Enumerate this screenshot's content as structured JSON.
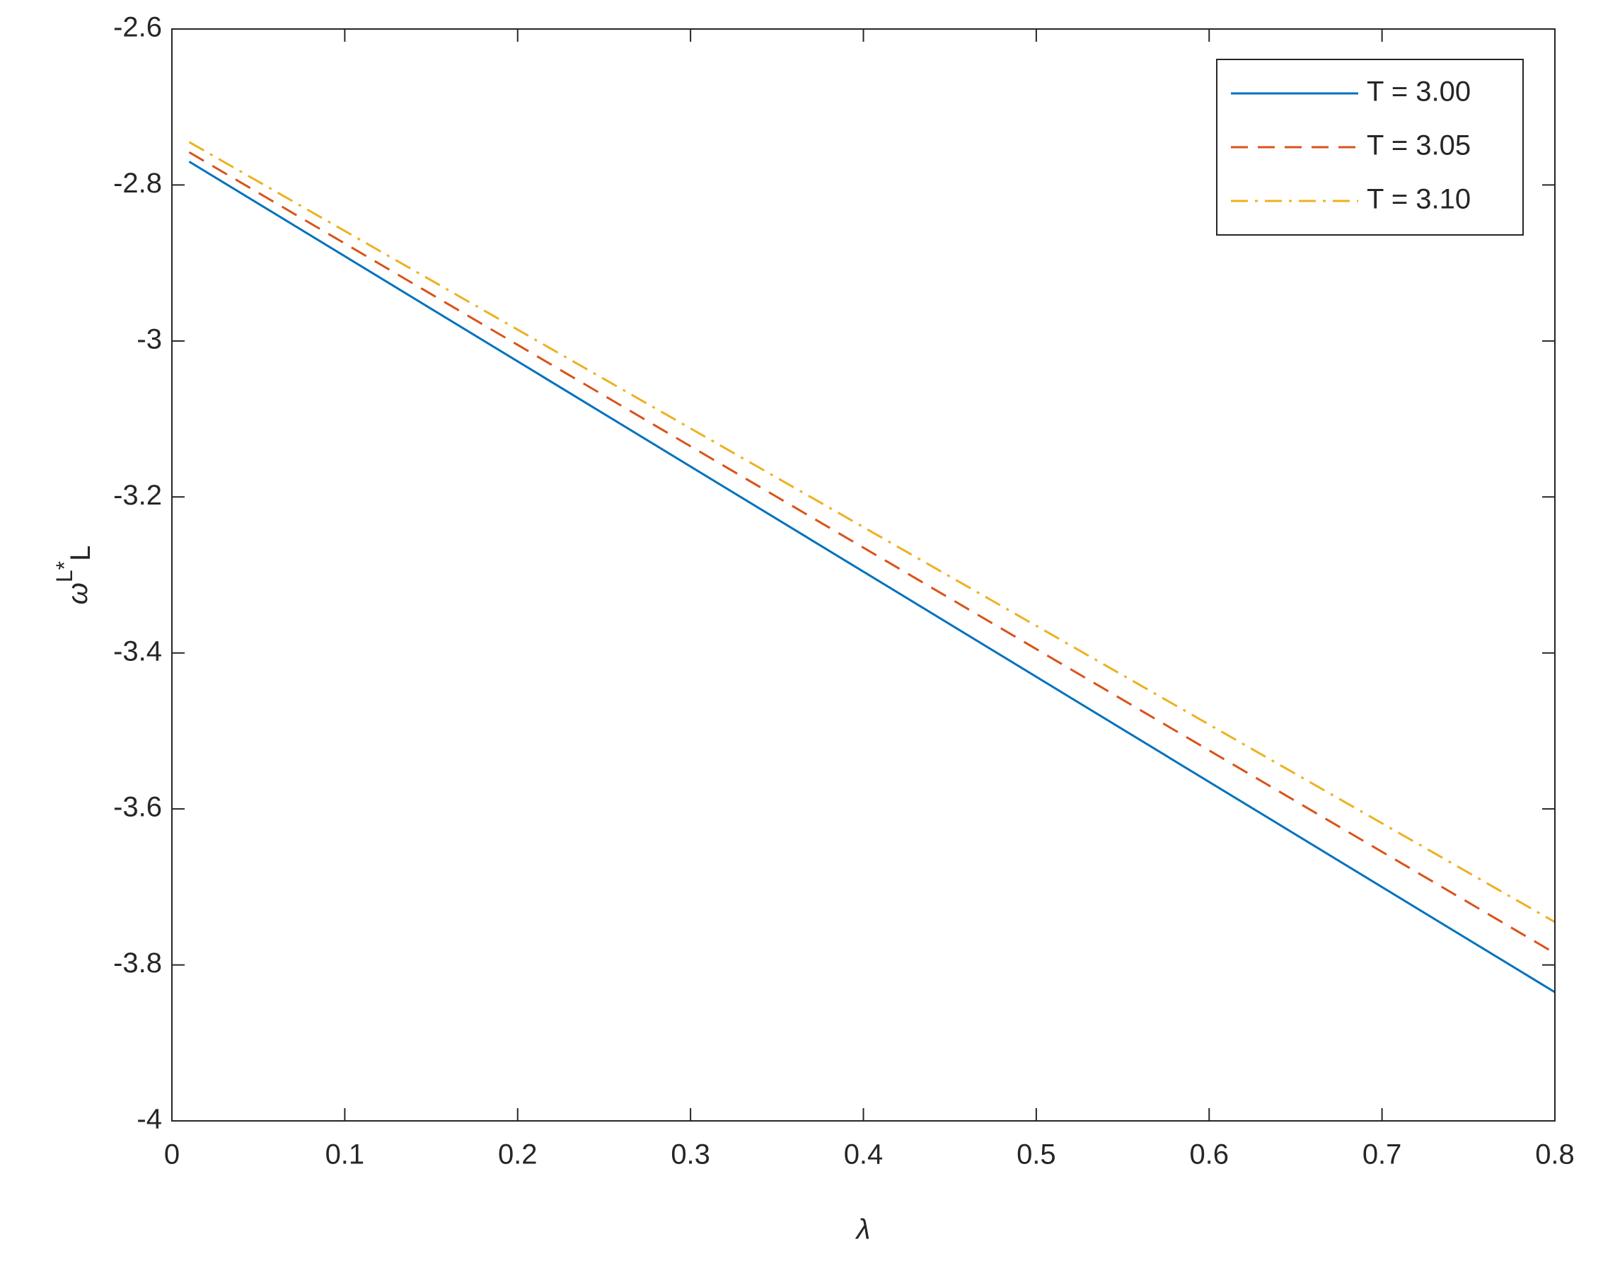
{
  "chart_data": {
    "type": "line",
    "x_label": "λ",
    "y_label": {
      "base": "ω",
      "sup": "L*",
      "sub": "L"
    },
    "x": [
      0.01,
      0.8
    ],
    "series": [
      {
        "name": "T = 3.00",
        "color": "#0072BD",
        "dash": "solid",
        "values": [
          -2.77,
          -3.835
        ]
      },
      {
        "name": "T = 3.05",
        "color": "#D95319",
        "dash": "dashed",
        "values": [
          -2.758,
          -3.785
        ]
      },
      {
        "name": "T = 3.10",
        "color": "#EDB120",
        "dash": "dashdot",
        "values": [
          -2.745,
          -3.745
        ]
      }
    ],
    "xlim": [
      0,
      0.8
    ],
    "xticks": [
      0,
      0.1,
      0.2,
      0.3,
      0.4,
      0.5,
      0.6,
      0.7,
      0.8
    ],
    "ylim": [
      -4,
      -2.6
    ],
    "yticks": [
      -4,
      -3.8,
      -3.6,
      -3.4,
      -3.2,
      -3,
      -2.8,
      -2.6
    ],
    "grid": false,
    "legend": "top-right"
  }
}
